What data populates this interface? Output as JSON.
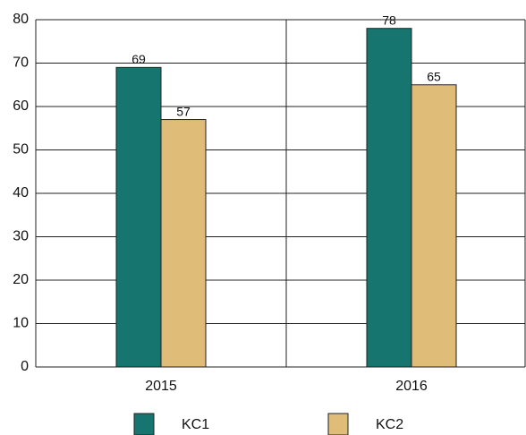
{
  "chart_data": {
    "type": "bar",
    "categories": [
      "2015",
      "2016"
    ],
    "series": [
      {
        "name": "KC1",
        "color": "#17756f",
        "values": [
          69,
          78
        ]
      },
      {
        "name": "KC2",
        "color": "#dfbc78",
        "values": [
          57,
          65
        ]
      }
    ],
    "ylim": [
      0,
      80
    ],
    "yticks": [
      0,
      10,
      20,
      30,
      40,
      50,
      60,
      70,
      80
    ],
    "grid": true,
    "data_labels": true,
    "legend": "bottom"
  }
}
